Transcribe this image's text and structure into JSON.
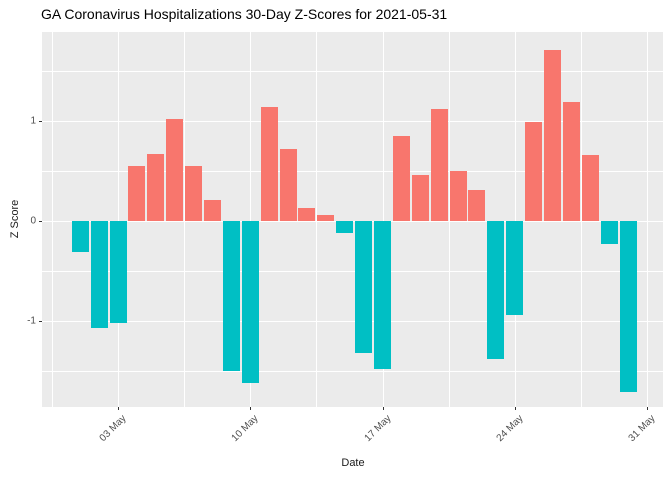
{
  "title": "GA Coronavirus Hospitalizations 30-Day Z-Scores for 2021-05-31",
  "axes": {
    "x_label": "Date",
    "y_label": "Z Score",
    "x_tick_labels": [
      "03 May",
      "10 May",
      "17 May",
      "24 May",
      "31 May"
    ],
    "y_tick_labels": [
      "1",
      "0",
      "-1"
    ]
  },
  "colors": {
    "positive_bar": "#F8766D",
    "negative_bar": "#00BFC4",
    "panel_background": "#EBEBEB",
    "gridline": "#FFFFFF",
    "tick_text": "#4D4D4D",
    "tick_mark": "#333333"
  },
  "chart_data": {
    "type": "bar",
    "title": "GA Coronavirus Hospitalizations 30-Day Z-Scores for 2021-05-31",
    "xlabel": "Date",
    "ylabel": "Z Score",
    "x": [
      "2021-05-01",
      "2021-05-02",
      "2021-05-03",
      "2021-05-04",
      "2021-05-05",
      "2021-05-06",
      "2021-05-07",
      "2021-05-08",
      "2021-05-09",
      "2021-05-10",
      "2021-05-11",
      "2021-05-12",
      "2021-05-13",
      "2021-05-14",
      "2021-05-15",
      "2021-05-16",
      "2021-05-17",
      "2021-05-18",
      "2021-05-19",
      "2021-05-20",
      "2021-05-21",
      "2021-05-22",
      "2021-05-23",
      "2021-05-24",
      "2021-05-25",
      "2021-05-26",
      "2021-05-27",
      "2021-05-28",
      "2021-05-29",
      "2021-05-30"
    ],
    "values": [
      -0.31,
      -1.07,
      -1.02,
      0.55,
      0.67,
      1.02,
      0.55,
      0.21,
      -1.5,
      -1.62,
      1.14,
      0.72,
      0.13,
      0.06,
      -0.12,
      -1.32,
      -1.48,
      0.85,
      0.46,
      1.12,
      0.5,
      0.31,
      -1.38,
      -0.94,
      0.99,
      1.71,
      1.19,
      0.66,
      -0.23,
      -1.71
    ],
    "x_tick_labels": [
      "03 May",
      "10 May",
      "17 May",
      "24 May",
      "31 May"
    ],
    "x_tick_days": [
      3,
      10,
      17,
      24,
      31
    ],
    "y_ticks": [
      1,
      0,
      -1
    ],
    "ylim": [
      -1.87,
      1.89
    ],
    "grid": "white major and minor gridlines on grey panel",
    "legend": "none",
    "color_rule": {
      "positive": "#F8766D",
      "negative": "#00BFC4"
    }
  }
}
